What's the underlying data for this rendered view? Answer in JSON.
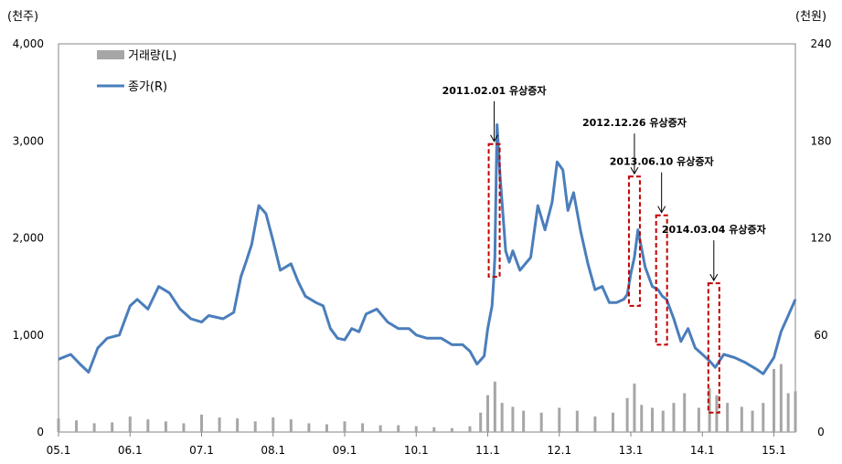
{
  "chart_data": {
    "type": "bar+line",
    "left_axis": {
      "unit_label": "(천주)",
      "min": 0,
      "max": 4000,
      "ticks": [
        0,
        1000,
        2000,
        3000,
        4000
      ],
      "tick_labels": [
        "0",
        "1,000",
        "2,000",
        "3,000",
        "4,000"
      ]
    },
    "right_axis": {
      "unit_label": "(천원)",
      "min": 0,
      "max": 240,
      "ticks": [
        0,
        60,
        120,
        180,
        240
      ],
      "tick_labels": [
        "0",
        "60",
        "120",
        "180",
        "240"
      ]
    },
    "x_axis": {
      "min": 2005.0,
      "max": 2015.3,
      "ticks": [
        2005.0,
        2006.0,
        2007.0,
        2008.0,
        2009.0,
        2010.0,
        2011.0,
        2012.0,
        2013.0,
        2014.0,
        2015.0
      ],
      "tick_labels": [
        "05.1",
        "06.1",
        "07.1",
        "08.1",
        "09.1",
        "10.1",
        "11.1",
        "12.1",
        "13.1",
        "14.1",
        "15.1"
      ]
    },
    "grid": false,
    "legend": {
      "position": "top-left",
      "colors": {
        "volume": "#a6a6a6",
        "price": "#4a7ebb"
      }
    },
    "series": [
      {
        "name": "거래량(L)",
        "axis": "left",
        "kind": "bar",
        "x": [
          2005.0,
          2005.25,
          2005.5,
          2005.75,
          2006.0,
          2006.25,
          2006.5,
          2006.75,
          2007.0,
          2007.25,
          2007.5,
          2007.75,
          2008.0,
          2008.25,
          2008.5,
          2008.75,
          2009.0,
          2009.25,
          2009.5,
          2009.75,
          2010.0,
          2010.25,
          2010.5,
          2010.75,
          2010.9,
          2011.0,
          2011.1,
          2011.2,
          2011.35,
          2011.5,
          2011.75,
          2012.0,
          2012.25,
          2012.5,
          2012.75,
          2012.95,
          2013.05,
          2013.15,
          2013.3,
          2013.45,
          2013.6,
          2013.75,
          2013.95,
          2014.1,
          2014.2,
          2014.35,
          2014.55,
          2014.7,
          2014.85,
          2015.0,
          2015.1,
          2015.2,
          2015.3
        ],
        "values": [
          140,
          120,
          90,
          100,
          160,
          130,
          110,
          90,
          180,
          150,
          140,
          110,
          150,
          130,
          90,
          80,
          110,
          90,
          70,
          70,
          60,
          50,
          40,
          60,
          200,
          380,
          520,
          300,
          260,
          220,
          200,
          250,
          220,
          160,
          200,
          350,
          500,
          280,
          250,
          220,
          300,
          400,
          250,
          450,
          380,
          300,
          260,
          220,
          300,
          650,
          700,
          400,
          420
        ]
      },
      {
        "name": "종가(R)",
        "axis": "right",
        "kind": "line",
        "x": [
          2005.0,
          2005.17,
          2005.3,
          2005.42,
          2005.55,
          2005.68,
          2005.85,
          2006.0,
          2006.1,
          2006.25,
          2006.4,
          2006.55,
          2006.7,
          2006.85,
          2007.0,
          2007.1,
          2007.3,
          2007.45,
          2007.55,
          2007.62,
          2007.7,
          2007.8,
          2007.9,
          2008.0,
          2008.1,
          2008.25,
          2008.35,
          2008.45,
          2008.6,
          2008.7,
          2008.8,
          2008.9,
          2009.0,
          2009.1,
          2009.2,
          2009.3,
          2009.45,
          2009.6,
          2009.75,
          2009.9,
          2010.0,
          2010.15,
          2010.35,
          2010.5,
          2010.65,
          2010.75,
          2010.85,
          2010.95,
          2011.0,
          2011.06,
          2011.08,
          2011.1,
          2011.13,
          2011.17,
          2011.25,
          2011.3,
          2011.35,
          2011.45,
          2011.6,
          2011.7,
          2011.8,
          2011.9,
          2011.97,
          2012.05,
          2012.12,
          2012.2,
          2012.3,
          2012.4,
          2012.5,
          2012.6,
          2012.7,
          2012.8,
          2012.9,
          2012.95,
          2013.0,
          2013.05,
          2013.1,
          2013.2,
          2013.3,
          2013.38,
          2013.44,
          2013.5,
          2013.6,
          2013.7,
          2013.8,
          2013.9,
          2014.0,
          2014.1,
          2014.18,
          2014.3,
          2014.45,
          2014.6,
          2014.75,
          2014.85,
          2015.0,
          2015.1,
          2015.2,
          2015.3
        ],
        "values": [
          45,
          48,
          42,
          37,
          52,
          58,
          60,
          78,
          82,
          76,
          90,
          86,
          76,
          70,
          68,
          72,
          70,
          74,
          96,
          105,
          116,
          140,
          135,
          118,
          100,
          104,
          93,
          84,
          80,
          78,
          64,
          58,
          57,
          64,
          62,
          73,
          76,
          68,
          64,
          64,
          60,
          58,
          58,
          54,
          54,
          50,
          42,
          47,
          64,
          78,
          92,
          108,
          190,
          160,
          112,
          105,
          112,
          100,
          108,
          140,
          125,
          142,
          167,
          162,
          137,
          148,
          124,
          104,
          88,
          90,
          80,
          80,
          82,
          85,
          98,
          108,
          125,
          102,
          90,
          88,
          84,
          82,
          70,
          56,
          64,
          52,
          48,
          44,
          40,
          48,
          46,
          43,
          39,
          36,
          46,
          62,
          72,
          82
        ]
      }
    ],
    "annotations": [
      {
        "label": "2011.02.01  유상증자",
        "x": 2011.09,
        "box_top": 178,
        "box_bottom": 96
      },
      {
        "label": "2012.12.26  유상증자",
        "x": 2013.05,
        "box_top": 158,
        "box_bottom": 78
      },
      {
        "label": "2013.06.10  유상증자",
        "x": 2013.43,
        "box_top": 134,
        "box_bottom": 54
      },
      {
        "label": "2014.03.04  유상증자",
        "x": 2014.16,
        "box_top": 92,
        "box_bottom": 12
      }
    ]
  }
}
